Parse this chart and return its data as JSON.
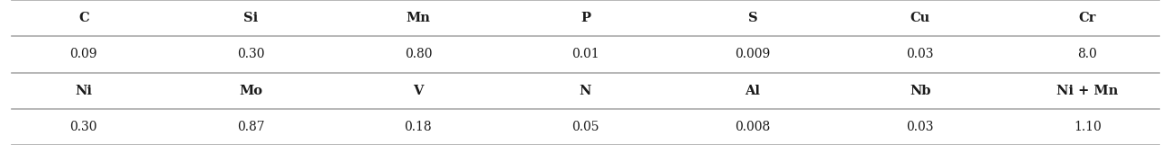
{
  "row1_headers": [
    "C",
    "Si",
    "Mn",
    "P",
    "S",
    "Cu",
    "Cr"
  ],
  "row1_values": [
    "0.09",
    "0.30",
    "0.80",
    "0.01",
    "0.009",
    "0.03",
    "8.0"
  ],
  "row2_headers": [
    "Ni",
    "Mo",
    "V",
    "N",
    "Al",
    "Nb",
    "Ni + Mn"
  ],
  "row2_values": [
    "0.30",
    "0.87",
    "0.18",
    "0.05",
    "0.008",
    "0.03",
    "1.10"
  ],
  "bg_color": "#ffffff",
  "header_fontsize": 10.5,
  "value_fontsize": 10,
  "line_color": "#aaaaaa",
  "text_color": "#1a1a1a",
  "figsize": [
    12.99,
    1.61
  ],
  "dpi": 100
}
